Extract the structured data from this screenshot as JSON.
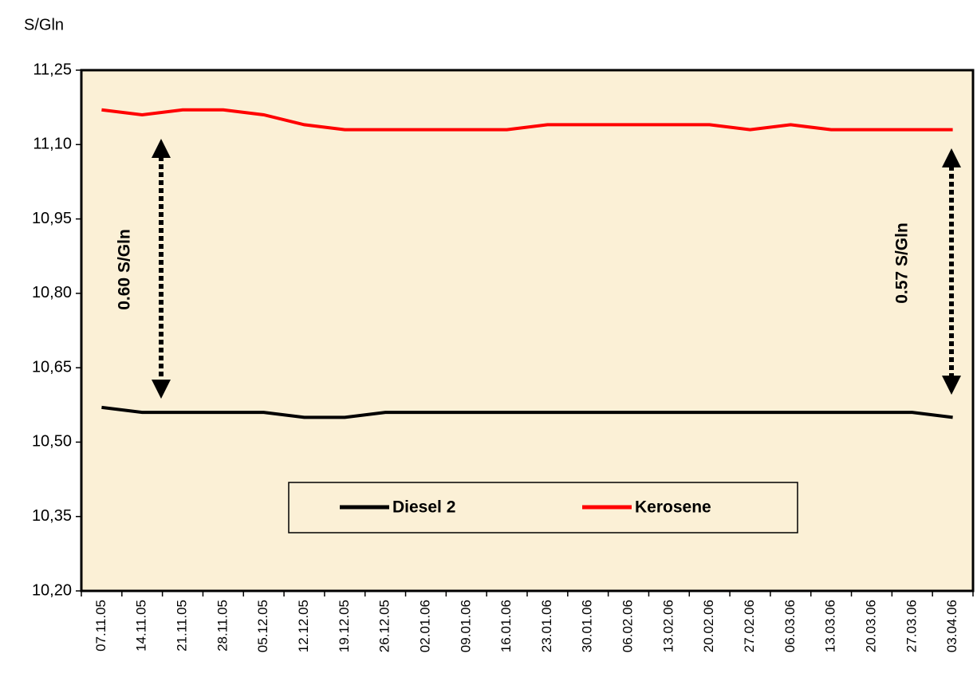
{
  "chart_data": {
    "type": "line",
    "y_label": "S/Gln",
    "categories": [
      "07.11.05",
      "14.11.05",
      "21.11.05",
      "28.11.05",
      "05.12.05",
      "12.12.05",
      "19.12.05",
      "26.12.05",
      "02.01.06",
      "09.01.06",
      "16.01.06",
      "23.01.06",
      "30.01.06",
      "06.02.06",
      "13.02.06",
      "20.02.06",
      "27.02.06",
      "06.03.06",
      "13.03.06",
      "20.03.06",
      "27.03.06",
      "03.04.06"
    ],
    "series": [
      {
        "name": "Diesel 2",
        "color": "#000000",
        "values": [
          10.57,
          10.56,
          10.56,
          10.56,
          10.56,
          10.55,
          10.55,
          10.56,
          10.56,
          10.56,
          10.56,
          10.56,
          10.56,
          10.56,
          10.56,
          10.56,
          10.56,
          10.56,
          10.56,
          10.56,
          10.56,
          10.55
        ]
      },
      {
        "name": "Kerosene",
        "color": "#ff0000",
        "values": [
          11.17,
          11.16,
          11.17,
          11.17,
          11.16,
          11.14,
          11.13,
          11.13,
          11.13,
          11.13,
          11.13,
          11.14,
          11.14,
          11.14,
          11.14,
          11.14,
          11.13,
          11.14,
          11.13,
          11.13,
          11.13,
          11.13
        ]
      }
    ],
    "ylim": [
      10.2,
      11.25
    ],
    "yticks": [
      {
        "value": 10.2,
        "label": "10,20"
      },
      {
        "value": 10.35,
        "label": "10,35"
      },
      {
        "value": 10.5,
        "label": "10,50"
      },
      {
        "value": 10.65,
        "label": "10,65"
      },
      {
        "value": 10.8,
        "label": "10,80"
      },
      {
        "value": 10.95,
        "label": "10,95"
      },
      {
        "value": 11.1,
        "label": "11,10"
      },
      {
        "value": 11.25,
        "label": "11,25"
      }
    ],
    "annotations": [
      "0.60 S/Gln",
      "0.57 S/Gln"
    ],
    "grid": false,
    "background": "#fbf0d6"
  }
}
